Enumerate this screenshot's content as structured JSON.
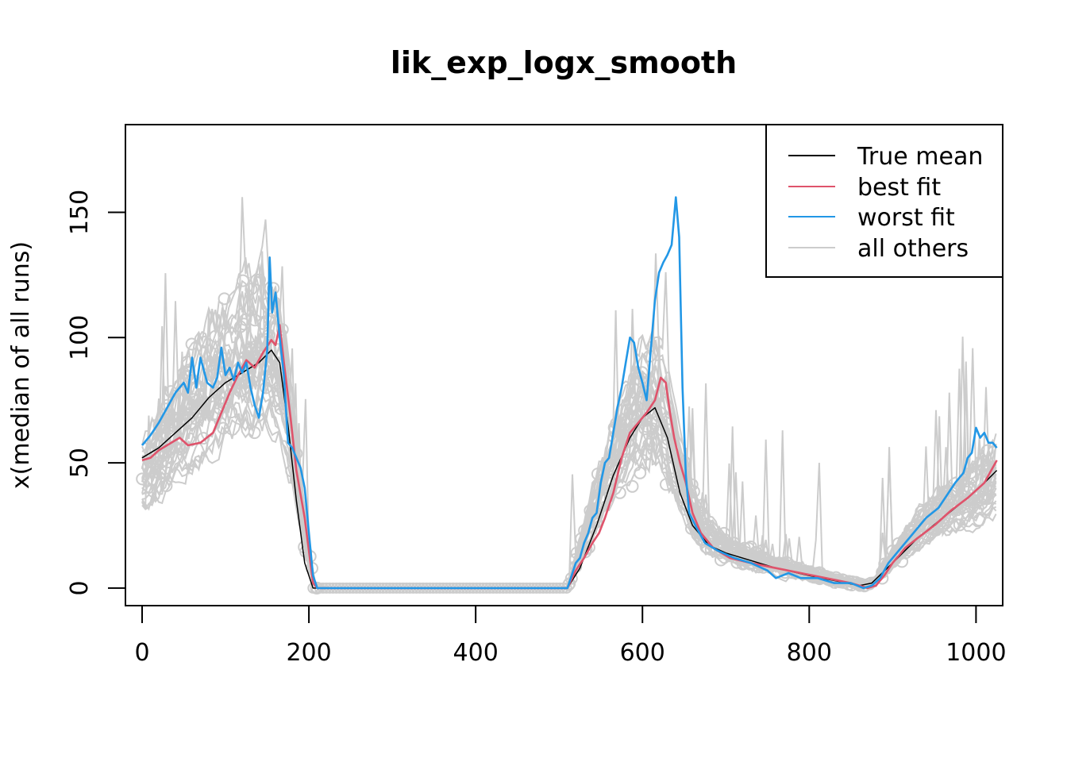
{
  "chart_data": {
    "type": "line",
    "title": "lik_exp_logx_smooth",
    "xlabel": "",
    "ylabel": "x(median of all runs)",
    "xlim": [
      -20,
      1032
    ],
    "ylim": [
      -7,
      185
    ],
    "x_ticks": [
      0,
      200,
      400,
      600,
      800,
      1000
    ],
    "y_ticks": [
      0,
      50,
      100,
      150
    ],
    "grid": false,
    "legend_position": "top-right",
    "legend": [
      {
        "label": "True mean",
        "color": "#000000"
      },
      {
        "label": "best fit",
        "color": "#DF536B"
      },
      {
        "label": "worst fit",
        "color": "#2297E6"
      },
      {
        "label": "all others",
        "color": "#CCCCCC"
      }
    ],
    "series": [
      {
        "name": "True mean",
        "color": "#000000",
        "points": [
          [
            0,
            52
          ],
          [
            20,
            56
          ],
          [
            40,
            62
          ],
          [
            60,
            68
          ],
          [
            80,
            76
          ],
          [
            100,
            82
          ],
          [
            120,
            86
          ],
          [
            140,
            90
          ],
          [
            155,
            95
          ],
          [
            165,
            90
          ],
          [
            175,
            65
          ],
          [
            185,
            35
          ],
          [
            195,
            10
          ],
          [
            205,
            0
          ],
          [
            510,
            0
          ],
          [
            525,
            8
          ],
          [
            545,
            25
          ],
          [
            565,
            45
          ],
          [
            585,
            60
          ],
          [
            600,
            68
          ],
          [
            615,
            72
          ],
          [
            630,
            60
          ],
          [
            645,
            38
          ],
          [
            660,
            25
          ],
          [
            680,
            17
          ],
          [
            700,
            14
          ],
          [
            730,
            11
          ],
          [
            760,
            8
          ],
          [
            800,
            5
          ],
          [
            830,
            3
          ],
          [
            860,
            1
          ],
          [
            875,
            2
          ],
          [
            900,
            10
          ],
          [
            930,
            20
          ],
          [
            960,
            28
          ],
          [
            990,
            36
          ],
          [
            1010,
            42
          ],
          [
            1025,
            47
          ]
        ]
      },
      {
        "name": "best fit",
        "color": "#DF536B",
        "points": [
          [
            0,
            51
          ],
          [
            10,
            52
          ],
          [
            20,
            55
          ],
          [
            35,
            58
          ],
          [
            45,
            60
          ],
          [
            55,
            57
          ],
          [
            70,
            58
          ],
          [
            85,
            62
          ],
          [
            95,
            70
          ],
          [
            105,
            78
          ],
          [
            115,
            85
          ],
          [
            125,
            91
          ],
          [
            135,
            88
          ],
          [
            145,
            94
          ],
          [
            155,
            99
          ],
          [
            160,
            97
          ],
          [
            165,
            105
          ],
          [
            170,
            90
          ],
          [
            178,
            68
          ],
          [
            185,
            47
          ],
          [
            195,
            28
          ],
          [
            205,
            2
          ],
          [
            210,
            0
          ],
          [
            510,
            0
          ],
          [
            520,
            7
          ],
          [
            530,
            12
          ],
          [
            540,
            18
          ],
          [
            548,
            22
          ],
          [
            555,
            28
          ],
          [
            565,
            38
          ],
          [
            575,
            52
          ],
          [
            585,
            62
          ],
          [
            595,
            66
          ],
          [
            605,
            70
          ],
          [
            615,
            75
          ],
          [
            622,
            84
          ],
          [
            628,
            82
          ],
          [
            633,
            70
          ],
          [
            638,
            60
          ],
          [
            645,
            50
          ],
          [
            652,
            42
          ],
          [
            660,
            30
          ],
          [
            670,
            22
          ],
          [
            685,
            16
          ],
          [
            705,
            12
          ],
          [
            730,
            10
          ],
          [
            760,
            8
          ],
          [
            790,
            6
          ],
          [
            820,
            4
          ],
          [
            850,
            2
          ],
          [
            870,
            0
          ],
          [
            880,
            1
          ],
          [
            890,
            5
          ],
          [
            900,
            10
          ],
          [
            915,
            16
          ],
          [
            930,
            20
          ],
          [
            950,
            25
          ],
          [
            970,
            31
          ],
          [
            990,
            36
          ],
          [
            1010,
            42
          ],
          [
            1025,
            51
          ]
        ]
      },
      {
        "name": "worst fit",
        "color": "#2297E6",
        "points": [
          [
            0,
            57
          ],
          [
            10,
            61
          ],
          [
            20,
            66
          ],
          [
            30,
            72
          ],
          [
            40,
            78
          ],
          [
            50,
            82
          ],
          [
            55,
            78
          ],
          [
            60,
            92
          ],
          [
            65,
            80
          ],
          [
            70,
            92
          ],
          [
            78,
            82
          ],
          [
            85,
            80
          ],
          [
            90,
            84
          ],
          [
            95,
            96
          ],
          [
            100,
            85
          ],
          [
            105,
            88
          ],
          [
            110,
            83
          ],
          [
            115,
            90
          ],
          [
            120,
            86
          ],
          [
            125,
            90
          ],
          [
            130,
            80
          ],
          [
            135,
            73
          ],
          [
            140,
            68
          ],
          [
            145,
            78
          ],
          [
            150,
            95
          ],
          [
            153,
            132
          ],
          [
            156,
            110
          ],
          [
            160,
            118
          ],
          [
            165,
            100
          ],
          [
            170,
            85
          ],
          [
            175,
            58
          ],
          [
            180,
            56
          ],
          [
            185,
            52
          ],
          [
            190,
            48
          ],
          [
            195,
            40
          ],
          [
            200,
            22
          ],
          [
            205,
            5
          ],
          [
            210,
            0
          ],
          [
            510,
            0
          ],
          [
            515,
            5
          ],
          [
            520,
            10
          ],
          [
            525,
            12
          ],
          [
            530,
            18
          ],
          [
            535,
            22
          ],
          [
            540,
            28
          ],
          [
            545,
            30
          ],
          [
            550,
            42
          ],
          [
            555,
            50
          ],
          [
            560,
            52
          ],
          [
            565,
            62
          ],
          [
            570,
            72
          ],
          [
            575,
            80
          ],
          [
            580,
            90
          ],
          [
            585,
            100
          ],
          [
            590,
            98
          ],
          [
            595,
            88
          ],
          [
            600,
            82
          ],
          [
            605,
            75
          ],
          [
            610,
            95
          ],
          [
            615,
            115
          ],
          [
            620,
            126
          ],
          [
            625,
            130
          ],
          [
            630,
            133
          ],
          [
            635,
            137
          ],
          [
            640,
            156
          ],
          [
            644,
            140
          ],
          [
            648,
            80
          ],
          [
            652,
            45
          ],
          [
            656,
            30
          ],
          [
            665,
            24
          ],
          [
            675,
            18
          ],
          [
            690,
            15
          ],
          [
            710,
            12
          ],
          [
            730,
            10
          ],
          [
            750,
            7
          ],
          [
            760,
            4
          ],
          [
            775,
            6
          ],
          [
            790,
            4
          ],
          [
            810,
            4
          ],
          [
            830,
            2
          ],
          [
            850,
            2
          ],
          [
            865,
            0
          ],
          [
            875,
            1
          ],
          [
            885,
            4
          ],
          [
            895,
            10
          ],
          [
            905,
            14
          ],
          [
            915,
            18
          ],
          [
            925,
            22
          ],
          [
            940,
            28
          ],
          [
            955,
            32
          ],
          [
            965,
            37
          ],
          [
            975,
            42
          ],
          [
            985,
            46
          ],
          [
            990,
            52
          ],
          [
            995,
            54
          ],
          [
            1000,
            64
          ],
          [
            1005,
            60
          ],
          [
            1010,
            62
          ],
          [
            1015,
            58
          ],
          [
            1020,
            58
          ],
          [
            1025,
            56
          ]
        ]
      },
      {
        "name": "all others",
        "color": "#CCCCCC",
        "points": [
          [
            0,
            45
          ],
          [
            10,
            48
          ],
          [
            20,
            52
          ],
          [
            30,
            58
          ],
          [
            40,
            62
          ],
          [
            50,
            66
          ],
          [
            60,
            70
          ],
          [
            70,
            74
          ],
          [
            80,
            78
          ],
          [
            90,
            82
          ],
          [
            100,
            86
          ],
          [
            110,
            88
          ],
          [
            120,
            90
          ],
          [
            130,
            92
          ],
          [
            140,
            94
          ],
          [
            150,
            96
          ],
          [
            160,
            92
          ],
          [
            170,
            80
          ],
          [
            180,
            60
          ],
          [
            190,
            35
          ],
          [
            200,
            12
          ],
          [
            208,
            0
          ],
          [
            510,
            0
          ],
          [
            520,
            10
          ],
          [
            530,
            20
          ],
          [
            540,
            30
          ],
          [
            550,
            38
          ],
          [
            560,
            46
          ],
          [
            570,
            54
          ],
          [
            580,
            62
          ],
          [
            590,
            68
          ],
          [
            600,
            72
          ],
          [
            610,
            74
          ],
          [
            620,
            72
          ],
          [
            630,
            64
          ],
          [
            640,
            52
          ],
          [
            650,
            40
          ],
          [
            660,
            30
          ],
          [
            670,
            24
          ],
          [
            690,
            18
          ],
          [
            710,
            15
          ],
          [
            730,
            12
          ],
          [
            760,
            9
          ],
          [
            790,
            7
          ],
          [
            820,
            4
          ],
          [
            850,
            2
          ],
          [
            870,
            1
          ],
          [
            880,
            3
          ],
          [
            900,
            12
          ],
          [
            920,
            20
          ],
          [
            940,
            26
          ],
          [
            960,
            30
          ],
          [
            980,
            34
          ],
          [
            1000,
            38
          ],
          [
            1025,
            44
          ]
        ]
      }
    ]
  }
}
